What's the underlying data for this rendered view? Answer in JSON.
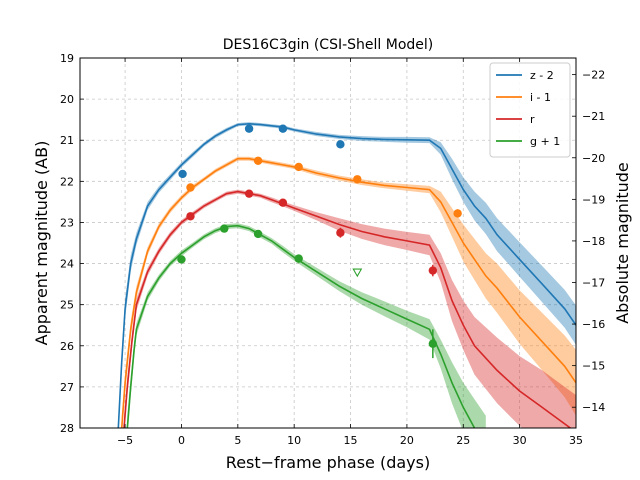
{
  "chart_data": {
    "type": "line",
    "title": "DES16C3gin (CSI-Shell Model)",
    "xlabel": "Rest−frame phase (days)",
    "ylabel": "Apparent magnitude (AB)",
    "y2label": "Absolute magnitude",
    "xlim": [
      -9,
      35
    ],
    "ylim": [
      19,
      28
    ],
    "y_inverted": true,
    "y2lim": [
      -22.4,
      -13.5
    ],
    "grid": true,
    "legend_position": "top-right",
    "x_ticks": [
      -5,
      0,
      5,
      10,
      15,
      20,
      25,
      30,
      35
    ],
    "x_tick_labels": [
      "−5",
      "0",
      "5",
      "10",
      "15",
      "20",
      "25",
      "30",
      "35"
    ],
    "y_ticks": [
      19,
      20,
      21,
      22,
      23,
      24,
      25,
      26,
      27,
      28
    ],
    "y_tick_labels": [
      "19",
      "20",
      "21",
      "22",
      "23",
      "24",
      "25",
      "26",
      "27",
      "28"
    ],
    "y2_ticks": [
      -22,
      -21,
      -20,
      -19,
      -18,
      -17,
      -16,
      -15,
      -14
    ],
    "y2_tick_labels": [
      "−22",
      "−21",
      "−20",
      "−19",
      "−18",
      "−17",
      "−16",
      "−15",
      "−14"
    ],
    "series": [
      {
        "name": "z - 2",
        "color": "#1f77b4",
        "model": {
          "x": [
            -5.6,
            -5.3,
            -5,
            -4.5,
            -4,
            -3,
            -2,
            -1,
            0,
            1,
            2,
            3,
            4,
            5,
            6,
            7,
            8,
            9,
            10,
            12,
            14,
            16,
            18,
            20,
            22,
            23,
            24,
            25,
            26,
            27,
            28,
            30,
            32,
            34,
            35
          ],
          "y": [
            28.0,
            26.4,
            25.1,
            24.0,
            23.4,
            22.6,
            22.2,
            21.9,
            21.6,
            21.35,
            21.1,
            20.9,
            20.75,
            20.62,
            20.6,
            20.62,
            20.65,
            20.68,
            20.75,
            20.85,
            20.92,
            20.96,
            20.98,
            20.99,
            21.0,
            21.2,
            21.7,
            22.2,
            22.6,
            22.9,
            23.3,
            23.9,
            24.5,
            25.1,
            25.5
          ],
          "band": [
            0.25,
            0.25,
            0.25,
            0.2,
            0.15,
            0.1,
            0.08,
            0.07,
            0.06,
            0.06,
            0.05,
            0.05,
            0.05,
            0.04,
            0.04,
            0.04,
            0.04,
            0.04,
            0.04,
            0.05,
            0.05,
            0.06,
            0.06,
            0.07,
            0.07,
            0.15,
            0.25,
            0.3,
            0.35,
            0.38,
            0.4,
            0.42,
            0.44,
            0.46,
            0.48
          ]
        },
        "points": [
          {
            "x": 0.1,
            "y": 21.82,
            "err": 0.06
          },
          {
            "x": 6.0,
            "y": 20.72,
            "err": 0.05
          },
          {
            "x": 9.0,
            "y": 20.72,
            "err": 0.05
          },
          {
            "x": 14.1,
            "y": 21.1,
            "err": 0.07
          }
        ]
      },
      {
        "name": "i - 1",
        "color": "#ff7f0e",
        "model": {
          "x": [
            -5.3,
            -5,
            -4.5,
            -4,
            -3,
            -2,
            -1,
            0,
            1,
            2,
            3,
            4,
            5,
            6,
            7,
            8,
            9,
            10,
            12,
            14,
            16,
            18,
            20,
            22,
            23,
            24,
            25,
            26,
            27,
            28,
            30,
            32,
            34,
            35
          ],
          "y": [
            28.0,
            26.9,
            25.6,
            24.7,
            23.7,
            23.1,
            22.7,
            22.4,
            22.15,
            21.95,
            21.75,
            21.6,
            21.45,
            21.45,
            21.5,
            21.55,
            21.6,
            21.65,
            21.8,
            21.92,
            22.02,
            22.1,
            22.15,
            22.2,
            22.5,
            23.0,
            23.5,
            23.9,
            24.3,
            24.6,
            25.3,
            25.9,
            26.5,
            26.9
          ],
          "band": [
            0.3,
            0.25,
            0.2,
            0.15,
            0.1,
            0.08,
            0.07,
            0.06,
            0.06,
            0.05,
            0.05,
            0.05,
            0.05,
            0.05,
            0.05,
            0.05,
            0.05,
            0.05,
            0.06,
            0.06,
            0.07,
            0.07,
            0.08,
            0.09,
            0.25,
            0.35,
            0.45,
            0.5,
            0.55,
            0.6,
            0.65,
            0.7,
            0.75,
            0.8
          ]
        },
        "points": [
          {
            "x": 0.8,
            "y": 22.15,
            "err": 0.06
          },
          {
            "x": 6.8,
            "y": 21.5,
            "err": 0.05
          },
          {
            "x": 10.4,
            "y": 21.65,
            "err": 0.05
          },
          {
            "x": 15.6,
            "y": 21.95,
            "err": 0.06
          },
          {
            "x": 24.5,
            "y": 22.78,
            "err": 0.1
          }
        ]
      },
      {
        "name": "r",
        "color": "#d62728",
        "model": {
          "x": [
            -5.1,
            -4.8,
            -4.4,
            -4,
            -3,
            -2,
            -1,
            0,
            1,
            2,
            3,
            4,
            5,
            6,
            7,
            8,
            9,
            10,
            12,
            14,
            16,
            18,
            20,
            22,
            23,
            24,
            25,
            26,
            28,
            30,
            32,
            34,
            35
          ],
          "y": [
            28.0,
            27.0,
            25.9,
            25.0,
            24.2,
            23.7,
            23.3,
            23.0,
            22.8,
            22.6,
            22.45,
            22.3,
            22.25,
            22.3,
            22.35,
            22.45,
            22.55,
            22.65,
            22.85,
            23.05,
            23.22,
            23.35,
            23.45,
            23.55,
            24.1,
            24.9,
            25.5,
            26.0,
            26.6,
            27.1,
            27.5,
            27.9,
            28.1
          ],
          "band": [
            0.3,
            0.25,
            0.2,
            0.15,
            0.1,
            0.08,
            0.07,
            0.06,
            0.06,
            0.05,
            0.05,
            0.05,
            0.05,
            0.05,
            0.05,
            0.06,
            0.06,
            0.07,
            0.1,
            0.15,
            0.18,
            0.2,
            0.22,
            0.25,
            0.35,
            0.5,
            0.6,
            0.7,
            0.8,
            0.85,
            0.9,
            0.9,
            0.9
          ]
        },
        "points": [
          {
            "x": 0.8,
            "y": 22.85,
            "err": 0.07
          },
          {
            "x": 6.0,
            "y": 22.3,
            "err": 0.05
          },
          {
            "x": 9.0,
            "y": 22.52,
            "err": 0.06
          },
          {
            "x": 14.1,
            "y": 23.25,
            "err": 0.12
          },
          {
            "x": 22.3,
            "y": 24.17,
            "err": 0.14
          }
        ]
      },
      {
        "name": "g + 1",
        "color": "#2ca02c",
        "model": {
          "x": [
            -4.8,
            -4.5,
            -4.2,
            -4,
            -3,
            -2,
            -1,
            0,
            1,
            2,
            3,
            4,
            5,
            6,
            7,
            8,
            9,
            10,
            12,
            14,
            16,
            18,
            20,
            22,
            23,
            24,
            25,
            26,
            27
          ],
          "y": [
            28.0,
            27.0,
            26.1,
            25.6,
            24.8,
            24.35,
            24.0,
            23.75,
            23.55,
            23.35,
            23.2,
            23.1,
            23.08,
            23.15,
            23.3,
            23.45,
            23.65,
            23.85,
            24.2,
            24.55,
            24.85,
            25.1,
            25.35,
            25.6,
            26.2,
            26.9,
            27.5,
            28.0,
            28.5
          ],
          "band": [
            0.3,
            0.25,
            0.2,
            0.15,
            0.1,
            0.08,
            0.07,
            0.07,
            0.06,
            0.06,
            0.06,
            0.06,
            0.06,
            0.06,
            0.07,
            0.07,
            0.08,
            0.08,
            0.1,
            0.12,
            0.15,
            0.18,
            0.2,
            0.25,
            0.35,
            0.5,
            0.6,
            0.7,
            0.8
          ]
        },
        "points": [
          {
            "x": 0.0,
            "y": 23.9,
            "err": 0.07
          },
          {
            "x": 3.8,
            "y": 23.15,
            "err": 0.06
          },
          {
            "x": 6.8,
            "y": 23.28,
            "err": 0.07
          },
          {
            "x": 10.4,
            "y": 23.88,
            "err": 0.08
          },
          {
            "x": 22.3,
            "y": 25.95,
            "err": 0.35
          }
        ],
        "upper_limits": [
          {
            "x": 15.6,
            "y": 24.22
          }
        ]
      }
    ]
  }
}
